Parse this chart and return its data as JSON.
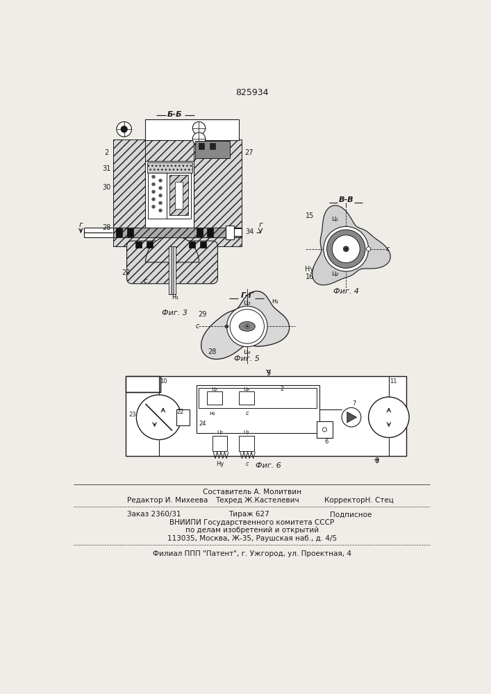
{
  "patent_number": "825934",
  "bg_color": "#f0ede8",
  "lc": "#1a1a1a",
  "fig3_caption": "Фиг. 3",
  "fig4_caption": "Фиг. 4",
  "fig5_caption": "Фиг. 5",
  "fig6_caption": "Фиг. 6",
  "section_bb": "Б-Б",
  "section_vv": "В-В",
  "section_gg": "Г-Г",
  "footer_line1": "Составитель А. Молитвин",
  "footer_line2a": "Редактор И. Михеева",
  "footer_line2b": "Техред Ж.Кастелевич",
  "footer_line2c": "КорректорН. Стец",
  "footer_line3a": "Заказ 2360/31",
  "footer_line3b": "Тираж 627",
  "footer_line3c": "Подписное",
  "footer_line4": "ВНИИПИ Государственного комитета СССР",
  "footer_line5": "по делам изобретений и открытий",
  "footer_line6": "113035, Москва, Ж-35, Раушская наб., д. 4/5",
  "footer_line7": "Филиал ППП \"Патент\", г. Ужгород, ул. Проектная, 4"
}
